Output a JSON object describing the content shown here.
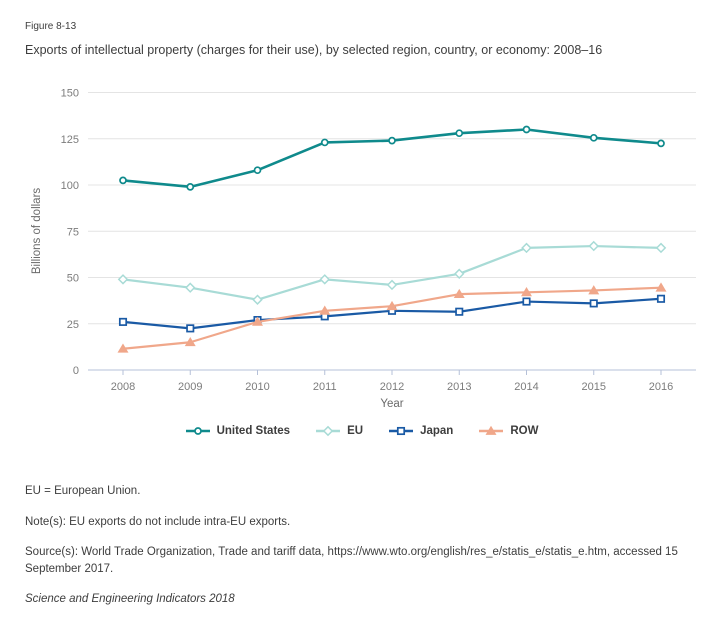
{
  "figure_label": "Figure 8-13",
  "notes": {
    "abbreviation": "EU = European Union.",
    "note": "Note(s): EU exports do not include intra-EU exports.",
    "source": "Source(s): World Trade Organization, Trade and tariff data, https://www.wto.org/english/res_e/statis_e/statis_e.htm, accessed 15 September 2017.",
    "attribution": "Science and Engineering Indicators 2018"
  },
  "chart_data": {
    "type": "line",
    "title": "Exports of intellectual property (charges for their use), by selected region, country, or economy: 2008–16",
    "xlabel": "Year",
    "ylabel": "Billions of dollars",
    "x": [
      2008,
      2009,
      2010,
      2011,
      2012,
      2013,
      2014,
      2015,
      2016
    ],
    "ylim": [
      0,
      150
    ],
    "yticks": [
      0,
      25,
      50,
      75,
      100,
      125,
      150
    ],
    "grid": true,
    "legend_position": "bottom",
    "colors": {
      "gridline": "#e4e4e4",
      "axis_line": "#b5c0d8",
      "tick_label": "#7c7c7c",
      "axis_title": "#6a6a6a"
    },
    "series": [
      {
        "name": "United States",
        "marker": "circle",
        "color": "#0f8a8c",
        "values": [
          102.5,
          99,
          108,
          123,
          124,
          128,
          130,
          125.5,
          122.5
        ]
      },
      {
        "name": "EU",
        "marker": "diamond",
        "color": "#a8dbd6",
        "values": [
          49,
          44.5,
          38,
          49,
          46,
          52,
          66,
          67,
          66
        ]
      },
      {
        "name": "Japan",
        "marker": "square",
        "color": "#1a5aa5",
        "values": [
          26,
          22.5,
          27,
          29,
          32,
          31.5,
          37,
          36,
          38.5
        ]
      },
      {
        "name": "ROW",
        "marker": "triangle",
        "color": "#f0a78a",
        "values": [
          11.5,
          15,
          26,
          32,
          34.5,
          41,
          42,
          43,
          44.5
        ]
      }
    ]
  }
}
